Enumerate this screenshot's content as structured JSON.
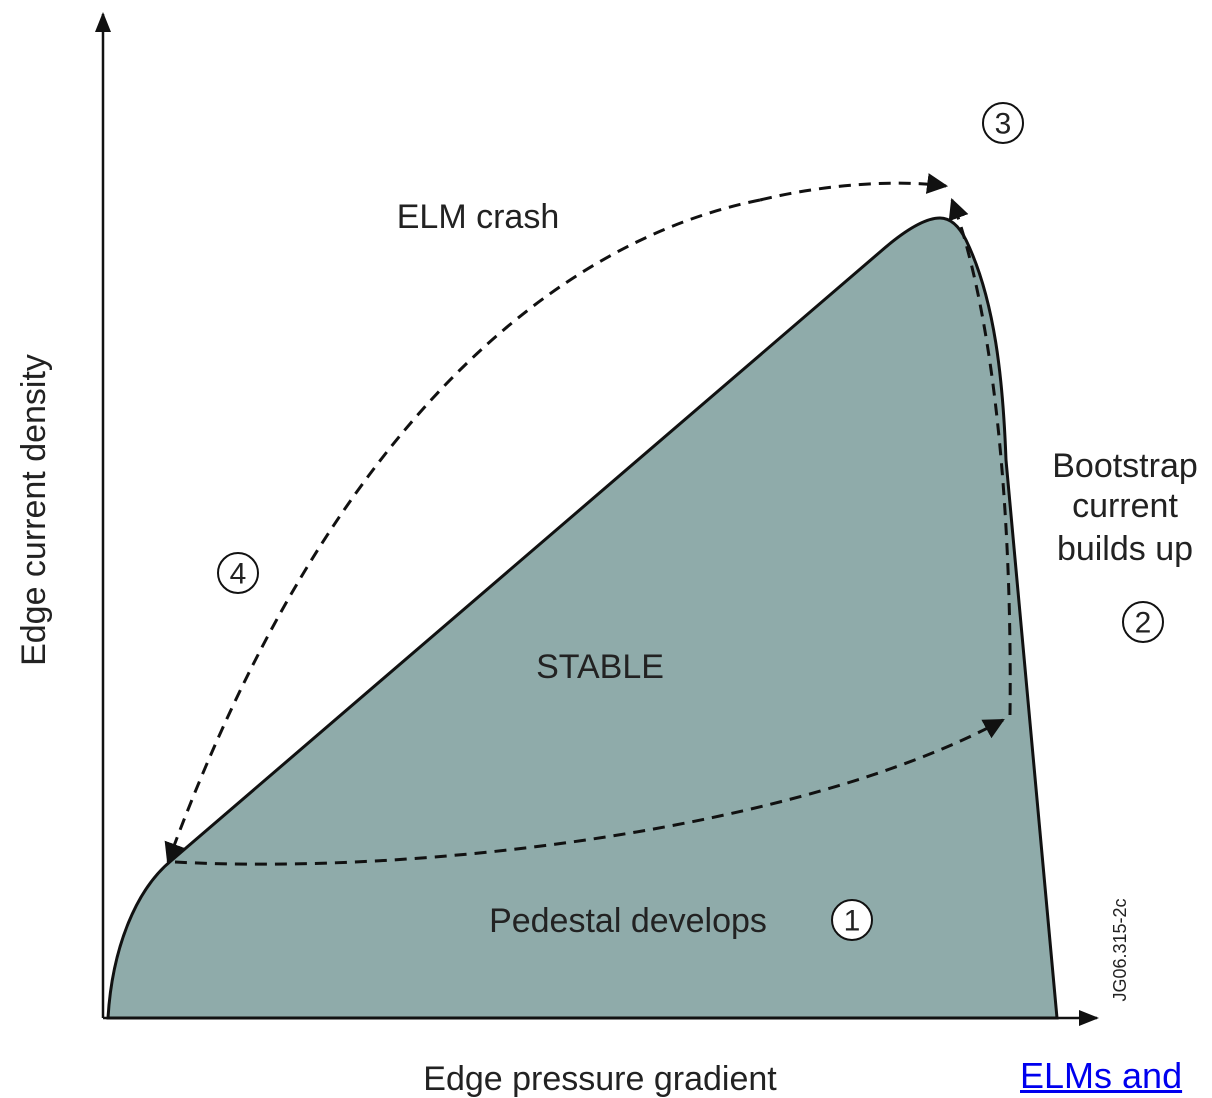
{
  "axes": {
    "y_label": "Edge current density",
    "x_label": "Edge pressure gradient"
  },
  "regions": {
    "stable": "STABLE"
  },
  "labels": {
    "elm_crash": "ELM crash",
    "bootstrap": [
      "Bootstrap",
      "current",
      "builds up"
    ],
    "pedestal": "Pedestal develops"
  },
  "steps": [
    "1",
    "2",
    "3",
    "4"
  ],
  "figure_id": "JG06.315-2c",
  "link": "ELMs and"
}
